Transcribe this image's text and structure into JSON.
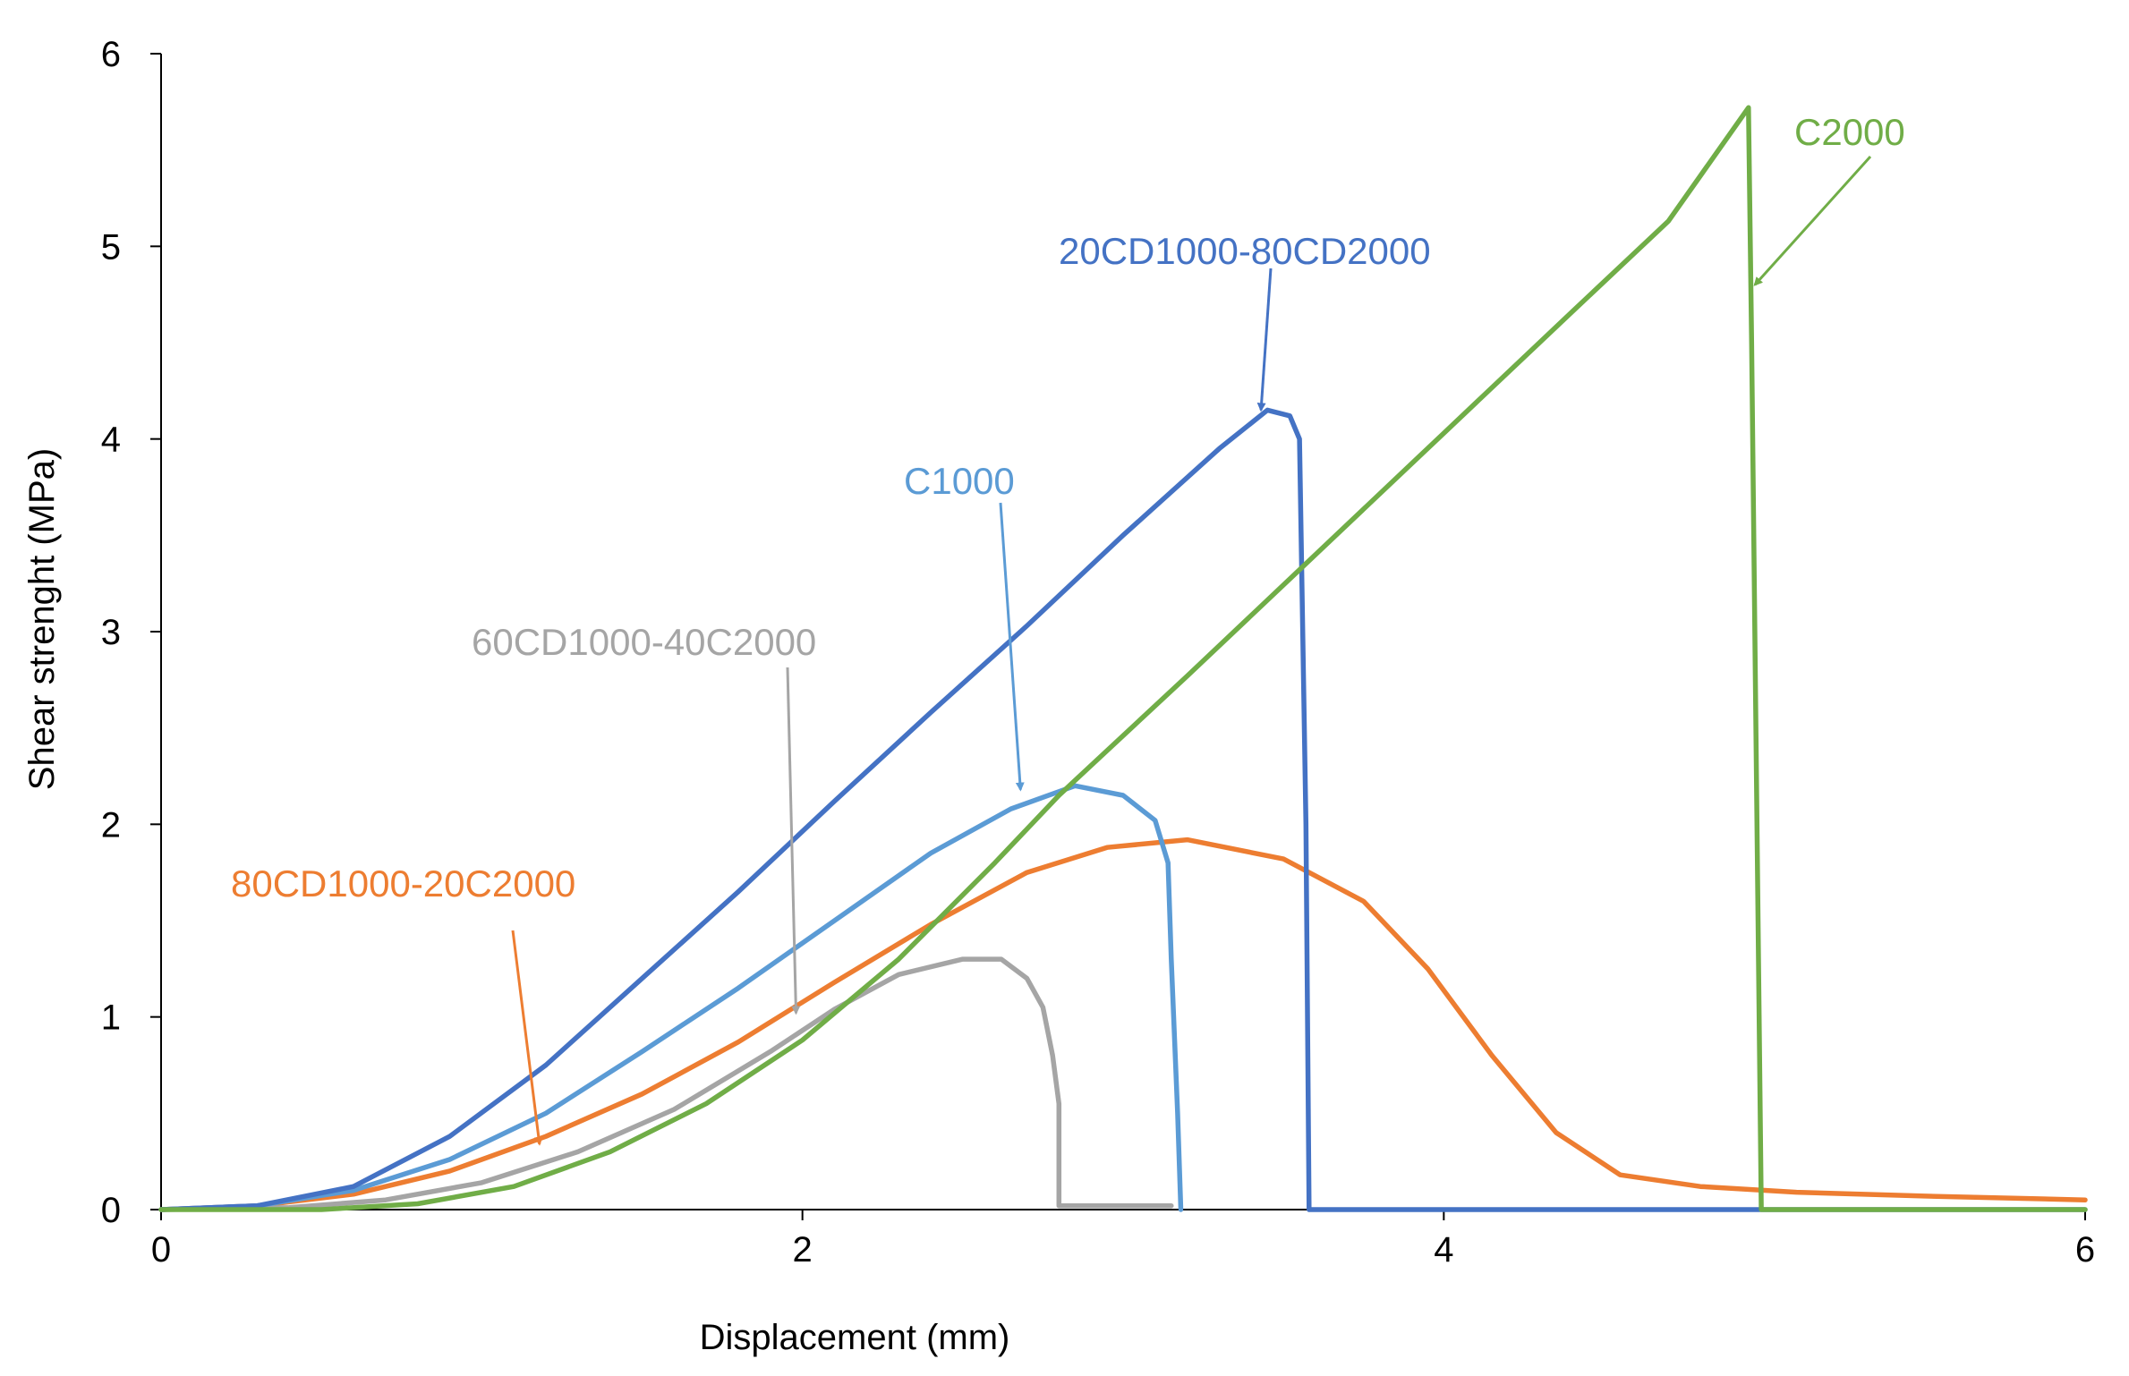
{
  "chart_data": {
    "type": "line",
    "title": "",
    "xlabel": "Displacement (mm)",
    "ylabel": "Shear strenght (MPa)",
    "xlim": [
      0,
      6
    ],
    "ylim": [
      0,
      6
    ],
    "xticks": [
      "0",
      "2",
      "4",
      "6"
    ],
    "yticks": [
      "0",
      "1",
      "2",
      "3",
      "4",
      "5",
      "6"
    ],
    "grid": false,
    "series": [
      {
        "name": "80CD1000-20C2000",
        "color": "#ED7D31",
        "points": [
          [
            0,
            0
          ],
          [
            0.3,
            0.02
          ],
          [
            0.6,
            0.08
          ],
          [
            0.9,
            0.2
          ],
          [
            1.2,
            0.38
          ],
          [
            1.5,
            0.6
          ],
          [
            1.8,
            0.87
          ],
          [
            2.1,
            1.18
          ],
          [
            2.4,
            1.48
          ],
          [
            2.7,
            1.75
          ],
          [
            2.95,
            1.88
          ],
          [
            3.2,
            1.92
          ],
          [
            3.5,
            1.82
          ],
          [
            3.75,
            1.6
          ],
          [
            3.95,
            1.25
          ],
          [
            4.15,
            0.8
          ],
          [
            4.35,
            0.4
          ],
          [
            4.55,
            0.18
          ],
          [
            4.8,
            0.12
          ],
          [
            5.1,
            0.09
          ],
          [
            5.5,
            0.07
          ],
          [
            6,
            0.05
          ]
        ]
      },
      {
        "name": "60CD1000-40C2000",
        "color": "#A5A5A5",
        "points": [
          [
            0,
            0
          ],
          [
            0.4,
            0.01
          ],
          [
            0.7,
            0.05
          ],
          [
            1.0,
            0.14
          ],
          [
            1.3,
            0.3
          ],
          [
            1.6,
            0.52
          ],
          [
            1.9,
            0.82
          ],
          [
            2.1,
            1.04
          ],
          [
            2.3,
            1.22
          ],
          [
            2.5,
            1.3
          ],
          [
            2.62,
            1.3
          ],
          [
            2.7,
            1.2
          ],
          [
            2.75,
            1.05
          ],
          [
            2.78,
            0.8
          ],
          [
            2.8,
            0.55
          ],
          [
            2.8,
            0.02
          ],
          [
            3.15,
            0.02
          ]
        ]
      },
      {
        "name": "C1000",
        "color": "#5B9BD5",
        "points": [
          [
            0,
            0
          ],
          [
            0.3,
            0.02
          ],
          [
            0.6,
            0.1
          ],
          [
            0.9,
            0.26
          ],
          [
            1.2,
            0.5
          ],
          [
            1.5,
            0.82
          ],
          [
            1.8,
            1.15
          ],
          [
            2.1,
            1.5
          ],
          [
            2.4,
            1.85
          ],
          [
            2.65,
            2.08
          ],
          [
            2.85,
            2.2
          ],
          [
            3.0,
            2.15
          ],
          [
            3.1,
            2.02
          ],
          [
            3.14,
            1.8
          ],
          [
            3.15,
            1.3
          ],
          [
            3.17,
            0.5
          ],
          [
            3.18,
            0.0
          ]
        ]
      },
      {
        "name": "20CD1000-80CD2000",
        "color": "#4472C4",
        "points": [
          [
            0,
            0
          ],
          [
            0.3,
            0.02
          ],
          [
            0.6,
            0.12
          ],
          [
            0.9,
            0.38
          ],
          [
            1.2,
            0.75
          ],
          [
            1.5,
            1.2
          ],
          [
            1.8,
            1.65
          ],
          [
            2.1,
            2.12
          ],
          [
            2.4,
            2.58
          ],
          [
            2.7,
            3.03
          ],
          [
            3.0,
            3.5
          ],
          [
            3.3,
            3.95
          ],
          [
            3.45,
            4.15
          ],
          [
            3.52,
            4.12
          ],
          [
            3.55,
            4.0
          ],
          [
            3.56,
            3.0
          ],
          [
            3.57,
            2.0
          ],
          [
            3.58,
            0.0
          ],
          [
            6,
            0.0
          ]
        ]
      },
      {
        "name": "C2000",
        "color": "#70AD47",
        "points": [
          [
            0,
            0
          ],
          [
            0.5,
            0.0
          ],
          [
            0.8,
            0.03
          ],
          [
            1.1,
            0.12
          ],
          [
            1.4,
            0.3
          ],
          [
            1.7,
            0.55
          ],
          [
            2.0,
            0.88
          ],
          [
            2.3,
            1.3
          ],
          [
            2.6,
            1.8
          ],
          [
            2.8,
            2.15
          ],
          [
            3.2,
            2.77
          ],
          [
            3.6,
            3.4
          ],
          [
            4.0,
            4.03
          ],
          [
            4.4,
            4.66
          ],
          [
            4.7,
            5.13
          ],
          [
            4.95,
            5.72
          ],
          [
            4.96,
            4.5
          ],
          [
            4.97,
            3.0
          ],
          [
            4.98,
            1.5
          ],
          [
            4.99,
            0.0
          ],
          [
            6,
            0.0
          ]
        ]
      }
    ],
    "annotations": [
      {
        "text": "80CD1000-20C2000",
        "color": "#ED7D31",
        "target": [
          1.18,
          0.34
        ]
      },
      {
        "text": "60CD1000-40C2000",
        "color": "#A5A5A5",
        "target": [
          1.98,
          1.02
        ]
      },
      {
        "text": "C1000",
        "color": "#5B9BD5",
        "target": [
          2.68,
          2.18
        ]
      },
      {
        "text": "20CD1000-80CD2000",
        "color": "#4472C4",
        "target": [
          3.43,
          4.15
        ]
      },
      {
        "text": "C2000",
        "color": "#70AD47",
        "target": [
          4.97,
          4.8
        ]
      }
    ]
  }
}
